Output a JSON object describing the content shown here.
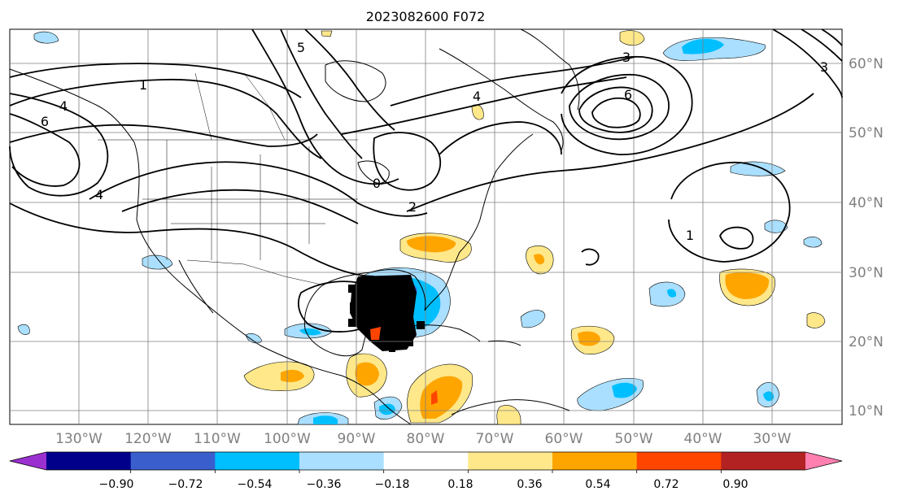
{
  "title": "2023082600 F072",
  "longitude_labels": [
    "130°W",
    "120°W",
    "110°W",
    "100°W",
    "90°W",
    "80°W",
    "70°W",
    "60°W",
    "50°W",
    "40°W",
    "30°W"
  ],
  "latitude_labels": [
    "10°N",
    "20°N",
    "30°N",
    "40°N",
    "50°N",
    "60°N"
  ],
  "colorbar": {
    "tick_labels": [
      "−0.90",
      "−0.72",
      "−0.54",
      "−0.36",
      "−0.18",
      "0.18",
      "0.36",
      "0.54",
      "0.72",
      "0.90"
    ],
    "colors": [
      "#9b30d0",
      "#00008b",
      "#3a5fcd",
      "#00bfff",
      "#aadfff",
      "#ffffff",
      "#ffe88a",
      "#ffa500",
      "#ff4500",
      "#b22222",
      "#ff80b0"
    ]
  },
  "contour_labels": [
    "1",
    "6",
    "4",
    "2",
    "3",
    "6",
    "4",
    "1",
    "4",
    "3",
    "5",
    "0"
  ],
  "colors": {
    "land_lines": "#000000",
    "grid": "#808080",
    "axis_label_text": "#808080"
  }
}
